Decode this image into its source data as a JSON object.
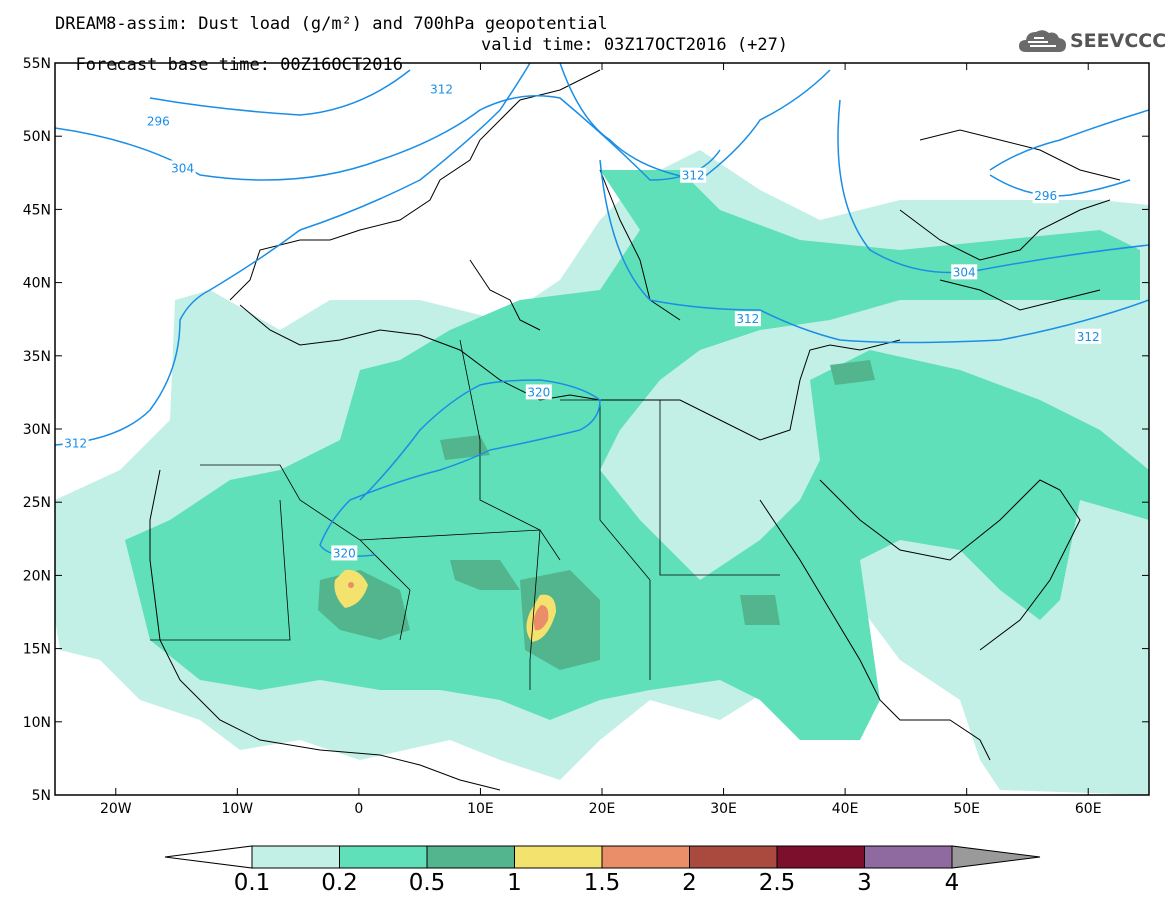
{
  "header": {
    "title_line1": "DREAM8-assim: Dust load (g/m²) and 700hPa geopotential",
    "title_line2": "Forecast base time: 00Z16OCT2016",
    "valid_time": "valid time: 03Z17OCT2016 (+27)"
  },
  "logo": {
    "text": "SEEVCCC",
    "icon": "cloud-icon",
    "color": "#666666"
  },
  "map": {
    "lon_range": [
      -25,
      65
    ],
    "lat_range": [
      5,
      55
    ],
    "lat_ticks": [
      {
        "value": 55,
        "label": "55N"
      },
      {
        "value": 50,
        "label": "50N"
      },
      {
        "value": 45,
        "label": "45N"
      },
      {
        "value": 40,
        "label": "40N"
      },
      {
        "value": 35,
        "label": "35N"
      },
      {
        "value": 30,
        "label": "30N"
      },
      {
        "value": 25,
        "label": "25N"
      },
      {
        "value": 20,
        "label": "20N"
      },
      {
        "value": 15,
        "label": "15N"
      },
      {
        "value": 10,
        "label": "10N"
      },
      {
        "value": 5,
        "label": "5N"
      }
    ],
    "lon_ticks": [
      {
        "value": -20,
        "label": "20W"
      },
      {
        "value": -10,
        "label": "10W"
      },
      {
        "value": 0,
        "label": "0"
      },
      {
        "value": 10,
        "label": "10E"
      },
      {
        "value": 20,
        "label": "20E"
      },
      {
        "value": 30,
        "label": "30E"
      },
      {
        "value": 40,
        "label": "40E"
      },
      {
        "value": 50,
        "label": "50E"
      },
      {
        "value": 60,
        "label": "60E"
      }
    ],
    "geopotential_labels": [
      {
        "text": "296",
        "lon": -16.5,
        "lat": 51.0
      },
      {
        "text": "304",
        "lon": -14.5,
        "lat": 47.8
      },
      {
        "text": "312",
        "lon": 6.8,
        "lat": 53.2
      },
      {
        "text": "312",
        "lon": 27.5,
        "lat": 47.3
      },
      {
        "text": "296",
        "lon": 56.5,
        "lat": 45.9
      },
      {
        "text": "304",
        "lon": 49.8,
        "lat": 40.7
      },
      {
        "text": "312",
        "lon": 32.0,
        "lat": 37.5
      },
      {
        "text": "312",
        "lon": 60.0,
        "lat": 36.3
      },
      {
        "text": "320",
        "lon": 14.8,
        "lat": 32.5
      },
      {
        "text": "320",
        "lon": -1.2,
        "lat": 21.5
      },
      {
        "text": "312",
        "lon": -23.3,
        "lat": 29.0
      }
    ],
    "colors": {
      "geopotential": "#1a8ee6",
      "coast": "#000000"
    }
  },
  "colorbar": {
    "labels": [
      "0.1",
      "0.2",
      "0.5",
      "1",
      "1.5",
      "2",
      "2.5",
      "3",
      "4"
    ],
    "colors": [
      "#c2f0e6",
      "#5fe0b8",
      "#52b58d",
      "#f3e36e",
      "#e98e68",
      "#aa4a3e",
      "#7c0f2b",
      "#8f6aa0"
    ],
    "under_color": "#ffffff",
    "over_color": "#9a9a9a"
  }
}
